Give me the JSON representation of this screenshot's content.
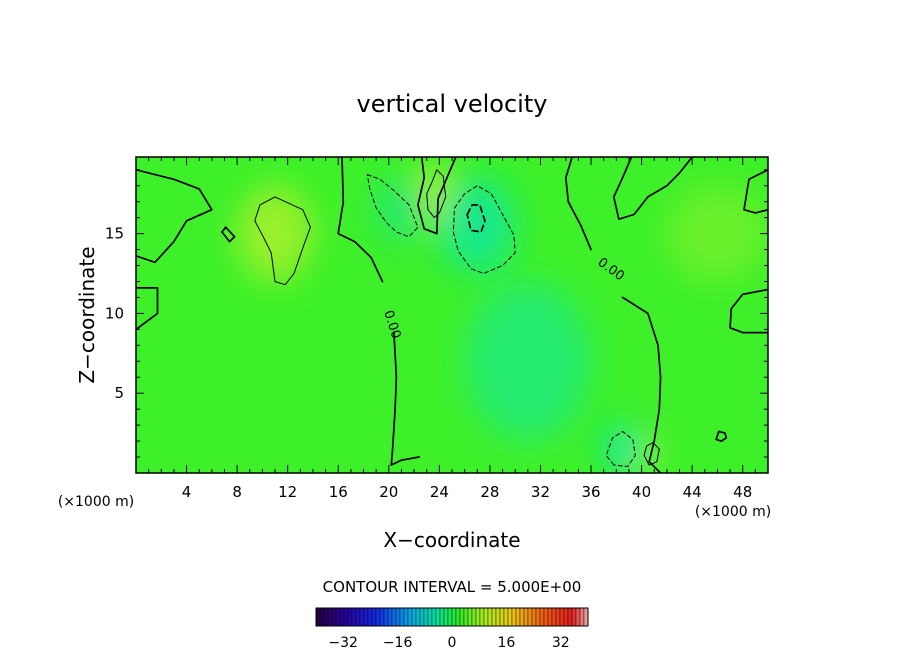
{
  "chart_data": {
    "type": "heatmap",
    "title": "vertical velocity",
    "xlabel": "X−coordinate",
    "ylabel": "Z−coordinate",
    "x_unit_left": "(×1000 m)",
    "x_unit_right": "(×1000 m)",
    "xlim": [
      0,
      50
    ],
    "ylim": [
      0,
      19.8
    ],
    "x_ticks": [
      4,
      8,
      12,
      16,
      20,
      24,
      28,
      32,
      36,
      40,
      44,
      48
    ],
    "x_tick_labels": [
      "4",
      "8",
      "12",
      "16",
      "20",
      "24",
      "28",
      "32",
      "36",
      "40",
      "44",
      "48"
    ],
    "y_ticks": [
      5,
      10,
      15
    ],
    "y_tick_labels": [
      "5",
      "10",
      "15"
    ],
    "contour_interval_text": "CONTOUR INTERVAL = 5.000E+00",
    "contour_labels": [
      "0.00",
      "0.00"
    ],
    "colorbar": {
      "min": -40,
      "max": 40,
      "ticks": [
        -32,
        -16,
        0,
        16,
        32
      ],
      "tick_labels": [
        "−32",
        "−16",
        "0",
        "16",
        "32"
      ]
    },
    "background_color": "#3ef02a",
    "blobs": [
      {
        "x": 11,
        "y": 15,
        "rx": 3,
        "ry": 3,
        "color": "#9af02a"
      },
      {
        "x": 23.5,
        "y": 17.5,
        "rx": 1,
        "ry": 2,
        "color": "#b8f02a"
      },
      {
        "x": 40.5,
        "y": 1.2,
        "rx": 0.8,
        "ry": 1,
        "color": "#a8f02a"
      },
      {
        "x": 46,
        "y": 15,
        "rx": 4,
        "ry": 3,
        "color": "#6af02a"
      },
      {
        "x": 27,
        "y": 15.5,
        "rx": 3,
        "ry": 3,
        "color": "#18e88a"
      },
      {
        "x": 21,
        "y": 16.5,
        "rx": 2,
        "ry": 2,
        "color": "#22e870"
      },
      {
        "x": 38.5,
        "y": 1.5,
        "rx": 1.5,
        "ry": 1.5,
        "color": "#10e8a0"
      },
      {
        "x": 31,
        "y": 7,
        "rx": 5,
        "ry": 5,
        "color": "#28ec70"
      }
    ],
    "contours": [
      {
        "style": "solid",
        "width": 1.7,
        "points": [
          [
            0,
            19
          ],
          [
            3,
            18.4
          ],
          [
            5,
            17.8
          ],
          [
            6,
            16.5
          ],
          [
            4,
            15.8
          ],
          [
            3,
            14.5
          ],
          [
            1.5,
            13.2
          ],
          [
            0,
            13.6
          ]
        ]
      },
      {
        "style": "solid",
        "width": 1.7,
        "points": [
          [
            0,
            11.6
          ],
          [
            1.7,
            11.6
          ],
          [
            1.7,
            10
          ],
          [
            0,
            9
          ]
        ]
      },
      {
        "style": "solid",
        "width": 1.7,
        "points": [
          [
            7.1,
            15.4
          ],
          [
            7.8,
            14.8
          ],
          [
            7.4,
            14.5
          ],
          [
            6.8,
            15.1
          ],
          [
            7.1,
            15.4
          ]
        ]
      },
      {
        "style": "solid",
        "width": 1.7,
        "points": [
          [
            16.3,
            19.8
          ],
          [
            16.4,
            17
          ],
          [
            16,
            15
          ],
          [
            17.3,
            14.5
          ],
          [
            18.6,
            13.5
          ],
          [
            19.5,
            12
          ]
        ]
      },
      {
        "style": "solid",
        "width": 1.7,
        "points": [
          [
            20.4,
            8.8
          ],
          [
            20.6,
            6
          ],
          [
            20.5,
            4
          ],
          [
            20.3,
            1.5
          ],
          [
            20.2,
            0.5
          ],
          [
            21,
            0.8
          ],
          [
            22.4,
            1
          ]
        ]
      },
      {
        "style": "solid",
        "width": 1.7,
        "points": [
          [
            25.3,
            19.8
          ],
          [
            23.9,
            17.2
          ],
          [
            23.8,
            15
          ],
          [
            22.8,
            15.3
          ],
          [
            22.3,
            16.8
          ],
          [
            22.8,
            18.5
          ],
          [
            22.6,
            19.8
          ]
        ]
      },
      {
        "style": "solid",
        "width": 1.7,
        "points": [
          [
            34.5,
            19.8
          ],
          [
            34,
            18.5
          ],
          [
            34.2,
            17
          ],
          [
            35.2,
            15.5
          ],
          [
            36,
            14
          ]
        ]
      },
      {
        "style": "solid",
        "width": 1.7,
        "points": [
          [
            38.5,
            11
          ],
          [
            40.5,
            10
          ],
          [
            41.3,
            8
          ],
          [
            41.5,
            6
          ],
          [
            41.4,
            4
          ],
          [
            41,
            2
          ],
          [
            40.6,
            0.7
          ],
          [
            41.5,
            0
          ]
        ]
      },
      {
        "style": "solid",
        "width": 1.7,
        "points": [
          [
            39.2,
            19.8
          ],
          [
            38.5,
            18.5
          ],
          [
            37.8,
            17.3
          ],
          [
            38.2,
            15.9
          ],
          [
            39.4,
            16.2
          ],
          [
            40.5,
            17.3
          ],
          [
            42,
            18
          ],
          [
            43,
            18.8
          ],
          [
            44,
            19.8
          ]
        ]
      },
      {
        "style": "solid",
        "width": 1.7,
        "points": [
          [
            50,
            19
          ],
          [
            48.5,
            18.4
          ],
          [
            48.1,
            16.5
          ],
          [
            49,
            16.3
          ],
          [
            50,
            16.5
          ]
        ]
      },
      {
        "style": "solid",
        "width": 1.7,
        "points": [
          [
            50,
            11.5
          ],
          [
            48,
            11.2
          ],
          [
            47.1,
            10.3
          ],
          [
            47,
            9.1
          ],
          [
            48,
            8.8
          ],
          [
            50,
            8.8
          ]
        ]
      },
      {
        "style": "solid",
        "width": 1.7,
        "points": [
          [
            46.1,
            2.6
          ],
          [
            46.6,
            2.5
          ],
          [
            46.7,
            2.2
          ],
          [
            46.3,
            2
          ],
          [
            45.9,
            2.1
          ],
          [
            46.1,
            2.6
          ]
        ]
      },
      {
        "style": "solid",
        "width": 1,
        "points": [
          [
            9.8,
            16.8
          ],
          [
            11,
            17.3
          ],
          [
            13.2,
            16.5
          ],
          [
            13.8,
            15.4
          ],
          [
            13.2,
            14.1
          ],
          [
            12.5,
            12.5
          ],
          [
            11.8,
            11.8
          ],
          [
            11,
            12
          ],
          [
            10.7,
            13.8
          ],
          [
            10,
            14.9
          ],
          [
            9.4,
            15.8
          ],
          [
            9.8,
            16.8
          ]
        ]
      },
      {
        "style": "solid",
        "width": 1,
        "points": [
          [
            23.4,
            18.2
          ],
          [
            23.8,
            19
          ],
          [
            24.3,
            18.6
          ],
          [
            24.5,
            17.3
          ],
          [
            24,
            16.3
          ],
          [
            23.6,
            16
          ],
          [
            23.1,
            16.5
          ],
          [
            23,
            17.5
          ],
          [
            23.4,
            18.2
          ]
        ]
      },
      {
        "style": "solid",
        "width": 1,
        "points": [
          [
            40.2,
            1.1
          ],
          [
            40.6,
            0.5
          ],
          [
            41.2,
            0.7
          ],
          [
            41.4,
            1.5
          ],
          [
            40.9,
            1.9
          ],
          [
            40.4,
            1.7
          ],
          [
            40.2,
            1.1
          ]
        ]
      },
      {
        "style": "dashed",
        "width": 1,
        "points": [
          [
            18.3,
            18.7
          ],
          [
            19.3,
            18.4
          ],
          [
            20.4,
            17.7
          ],
          [
            21.6,
            16.8
          ],
          [
            22.3,
            15.4
          ],
          [
            21.6,
            14.8
          ],
          [
            20.6,
            15.1
          ],
          [
            19.8,
            15.7
          ],
          [
            19,
            16.6
          ],
          [
            18.5,
            17.8
          ],
          [
            18.3,
            18.7
          ]
        ]
      },
      {
        "style": "dashed",
        "width": 1,
        "points": [
          [
            25.2,
            16.6
          ],
          [
            26,
            17.5
          ],
          [
            27,
            18
          ],
          [
            28.1,
            17.5
          ],
          [
            29,
            16.2
          ],
          [
            29.9,
            14.9
          ],
          [
            30,
            13.8
          ],
          [
            29,
            13
          ],
          [
            27.5,
            12.5
          ],
          [
            26.5,
            12.8
          ],
          [
            25.5,
            13.9
          ],
          [
            25.1,
            15.1
          ],
          [
            25.2,
            16.6
          ]
        ]
      },
      {
        "style": "dashed",
        "width": 1.7,
        "points": [
          [
            26.2,
            16.2
          ],
          [
            26.6,
            16.8
          ],
          [
            27.2,
            16.8
          ],
          [
            27.6,
            15.8
          ],
          [
            27.3,
            15.1
          ],
          [
            26.5,
            15.2
          ],
          [
            26.2,
            16.2
          ]
        ]
      },
      {
        "style": "dashed",
        "width": 1,
        "points": [
          [
            37.8,
            0.5
          ],
          [
            37.2,
            1.1
          ],
          [
            37.7,
            2.2
          ],
          [
            38.5,
            2.6
          ],
          [
            39.3,
            2.1
          ],
          [
            39.5,
            1.1
          ],
          [
            38.9,
            0.4
          ],
          [
            37.8,
            0.5
          ]
        ]
      }
    ]
  }
}
